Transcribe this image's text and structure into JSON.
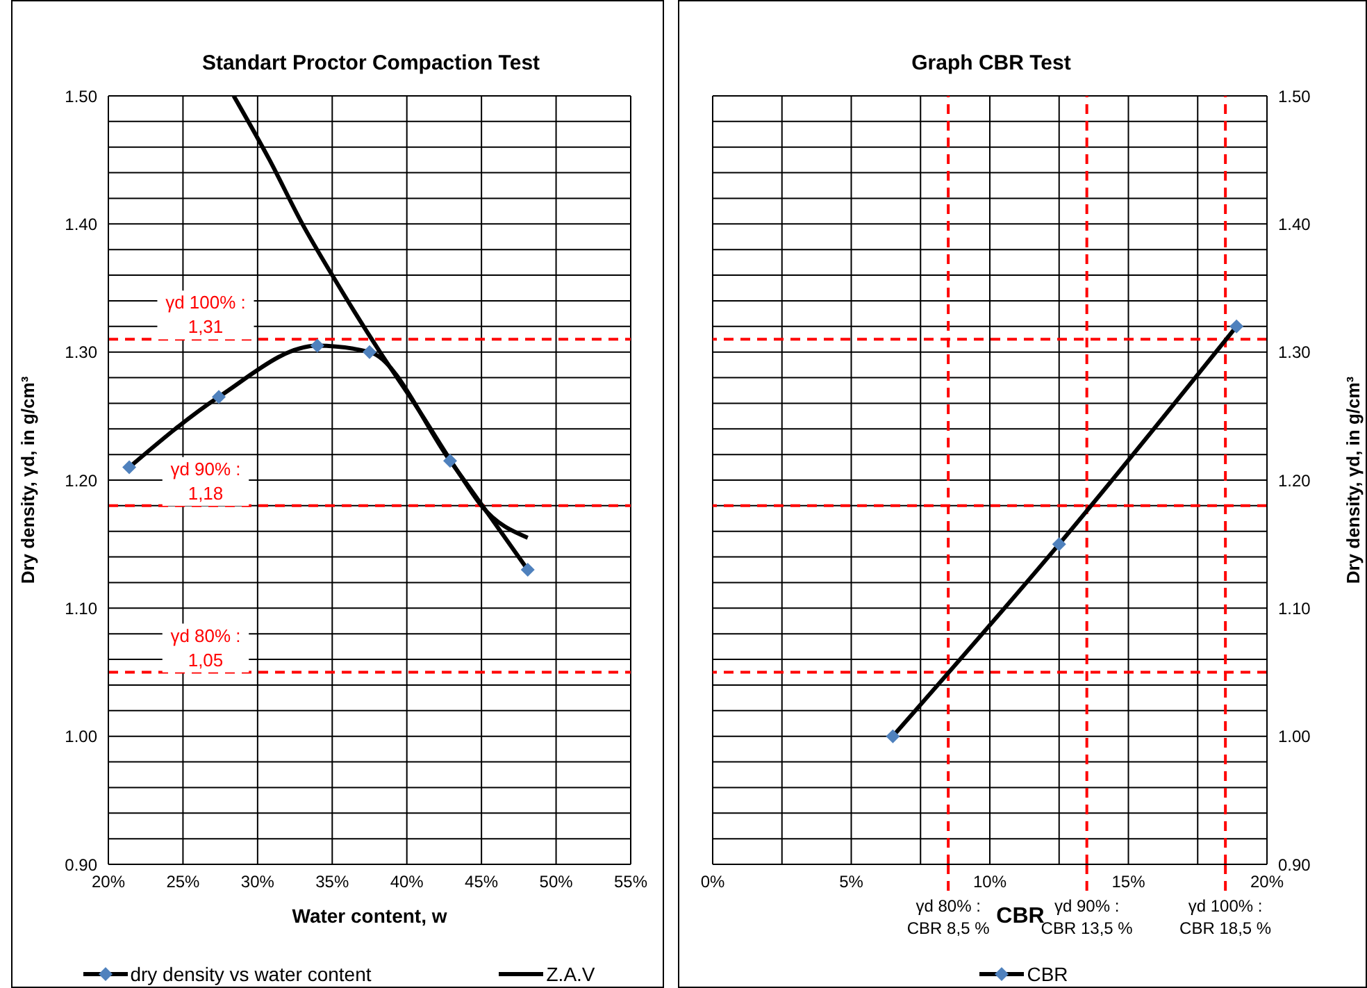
{
  "chart_data": [
    {
      "type": "line",
      "title": "Standart Proctor Compaction Test",
      "xlabel": "Water content, w",
      "ylabel": "Dry density, γd, in g/cm³",
      "xlim": [
        20,
        55
      ],
      "xticks": [
        {
          "value": 20,
          "label": "20%"
        },
        {
          "value": 25,
          "label": "25%"
        },
        {
          "value": 30,
          "label": "30%"
        },
        {
          "value": 35,
          "label": "35%"
        },
        {
          "value": 40,
          "label": "40%"
        },
        {
          "value": 45,
          "label": "45%"
        },
        {
          "value": 50,
          "label": "50%"
        },
        {
          "value": 55,
          "label": "55%"
        }
      ],
      "ylim": [
        0.9,
        1.5
      ],
      "yticks": [
        {
          "value": 0.9,
          "label": "0.90"
        },
        {
          "value": 0.92,
          "label": null
        },
        {
          "value": 0.94,
          "label": null
        },
        {
          "value": 0.96,
          "label": null
        },
        {
          "value": 0.98,
          "label": null
        },
        {
          "value": 1.0,
          "label": "1.00"
        },
        {
          "value": 1.02,
          "label": null
        },
        {
          "value": 1.04,
          "label": null
        },
        {
          "value": 1.06,
          "label": null
        },
        {
          "value": 1.08,
          "label": null
        },
        {
          "value": 1.1,
          "label": "1.10"
        },
        {
          "value": 1.12,
          "label": null
        },
        {
          "value": 1.14,
          "label": null
        },
        {
          "value": 1.16,
          "label": null
        },
        {
          "value": 1.18,
          "label": null
        },
        {
          "value": 1.2,
          "label": "1.20"
        },
        {
          "value": 1.22,
          "label": null
        },
        {
          "value": 1.24,
          "label": null
        },
        {
          "value": 1.26,
          "label": null
        },
        {
          "value": 1.28,
          "label": null
        },
        {
          "value": 1.3,
          "label": "1.30"
        },
        {
          "value": 1.32,
          "label": null
        },
        {
          "value": 1.34,
          "label": null
        },
        {
          "value": 1.36,
          "label": null
        },
        {
          "value": 1.38,
          "label": null
        },
        {
          "value": 1.4,
          "label": "1.40"
        },
        {
          "value": 1.42,
          "label": null
        },
        {
          "value": 1.44,
          "label": null
        },
        {
          "value": 1.46,
          "label": null
        },
        {
          "value": 1.48,
          "label": null
        },
        {
          "value": 1.5,
          "label": "1.50"
        }
      ],
      "grid": true,
      "legend": "bottom",
      "line_style": "solid",
      "series": [
        {
          "name": "dry density vs water content",
          "color": "#000000",
          "marker": "diamond",
          "colors": [
            "#4f81bd",
            "#4f81bd",
            "#4f81bd",
            "#4f81bd",
            "#4f81bd",
            "#4f81bd"
          ],
          "x": [
            21.4,
            27.4,
            34.0,
            37.5,
            42.9,
            48.1
          ],
          "values": [
            1.21,
            1.265,
            1.305,
            1.3,
            1.215,
            1.13
          ]
        },
        {
          "name": "Z.A.V",
          "color": "#000000",
          "marker": "none",
          "x": [
            28.4,
            30.8,
            33.0,
            35.0,
            38.2,
            40.5,
            43.8,
            45.0,
            48.1
          ],
          "values": [
            1.5,
            1.45,
            1.4,
            1.36,
            1.3,
            1.26,
            1.2,
            1.18,
            1.155
          ]
        }
      ],
      "ref_lines": [
        {
          "axis": "y",
          "value": 1.31,
          "label": "γd 100% :\n1,31",
          "color": "#ff0000",
          "line_style": "dashed"
        },
        {
          "axis": "y",
          "value": 1.18,
          "label": "γd 90% :\n1,18",
          "color": "#ff0000",
          "line_style": "dashed"
        },
        {
          "axis": "y",
          "value": 1.05,
          "label": "γd 80% :\n1,05",
          "color": "#ff0000",
          "line_style": "dashed"
        }
      ]
    },
    {
      "type": "line",
      "title": "Graph CBR Test",
      "xlabel": "CBR",
      "y2label": "Dry density, γd, in g/cm³",
      "xlim": [
        0,
        20
      ],
      "xticks": [
        {
          "value": 0,
          "label": "0%"
        },
        {
          "value": 2.5,
          "label": null
        },
        {
          "value": 5,
          "label": "5%"
        },
        {
          "value": 7.5,
          "label": null
        },
        {
          "value": 10,
          "label": "10%"
        },
        {
          "value": 12.5,
          "label": null
        },
        {
          "value": 15,
          "label": "15%"
        },
        {
          "value": 17.5,
          "label": null
        },
        {
          "value": 20,
          "label": "20%"
        }
      ],
      "y2lim": [
        0.9,
        1.5
      ],
      "y2ticks": [
        {
          "value": 0.9,
          "label": "0.90"
        },
        {
          "value": 0.92,
          "label": null
        },
        {
          "value": 0.94,
          "label": null
        },
        {
          "value": 0.96,
          "label": null
        },
        {
          "value": 0.98,
          "label": null
        },
        {
          "value": 1.0,
          "label": "1.00"
        },
        {
          "value": 1.02,
          "label": null
        },
        {
          "value": 1.04,
          "label": null
        },
        {
          "value": 1.06,
          "label": null
        },
        {
          "value": 1.08,
          "label": null
        },
        {
          "value": 1.1,
          "label": "1.10"
        },
        {
          "value": 1.12,
          "label": null
        },
        {
          "value": 1.14,
          "label": null
        },
        {
          "value": 1.16,
          "label": null
        },
        {
          "value": 1.18,
          "label": null
        },
        {
          "value": 1.2,
          "label": "1.20"
        },
        {
          "value": 1.22,
          "label": null
        },
        {
          "value": 1.24,
          "label": null
        },
        {
          "value": 1.26,
          "label": null
        },
        {
          "value": 1.28,
          "label": null
        },
        {
          "value": 1.3,
          "label": "1.30"
        },
        {
          "value": 1.32,
          "label": null
        },
        {
          "value": 1.34,
          "label": null
        },
        {
          "value": 1.36,
          "label": null
        },
        {
          "value": 1.38,
          "label": null
        },
        {
          "value": 1.4,
          "label": "1.40"
        },
        {
          "value": 1.42,
          "label": null
        },
        {
          "value": 1.44,
          "label": null
        },
        {
          "value": 1.46,
          "label": null
        },
        {
          "value": 1.48,
          "label": null
        },
        {
          "value": 1.5,
          "label": "1.50"
        }
      ],
      "grid": true,
      "legend": "bottom",
      "line_style": "solid",
      "series": [
        {
          "name": "CBR",
          "axis": "y2",
          "color": "#000000",
          "marker": "diamond",
          "colors": [
            "#4f81bd",
            "#4f81bd",
            "#4f81bd"
          ],
          "x": [
            6.5,
            12.5,
            18.9
          ],
          "values": [
            1.0,
            1.15,
            1.32
          ]
        }
      ],
      "ref_lines": [
        {
          "axis": "y2",
          "value": 1.31,
          "color": "#ff0000",
          "line_style": "dashed"
        },
        {
          "axis": "y2",
          "value": 1.18,
          "color": "#ff0000",
          "line_style": "dashed"
        },
        {
          "axis": "y2",
          "value": 1.05,
          "color": "#ff0000",
          "line_style": "dashed"
        },
        {
          "axis": "x",
          "value": 8.5,
          "label": "γd 80% :\nCBR 8,5 %",
          "color": "#ff0000",
          "line_style": "dashed"
        },
        {
          "axis": "x",
          "value": 13.5,
          "label": "γd 90% :\nCBR 13,5 %",
          "color": "#ff0000",
          "line_style": "dashed"
        },
        {
          "axis": "x",
          "value": 18.5,
          "label": "γd 100% :\nCBR 18,5 %",
          "color": "#ff0000",
          "line_style": "dashed"
        }
      ]
    }
  ]
}
